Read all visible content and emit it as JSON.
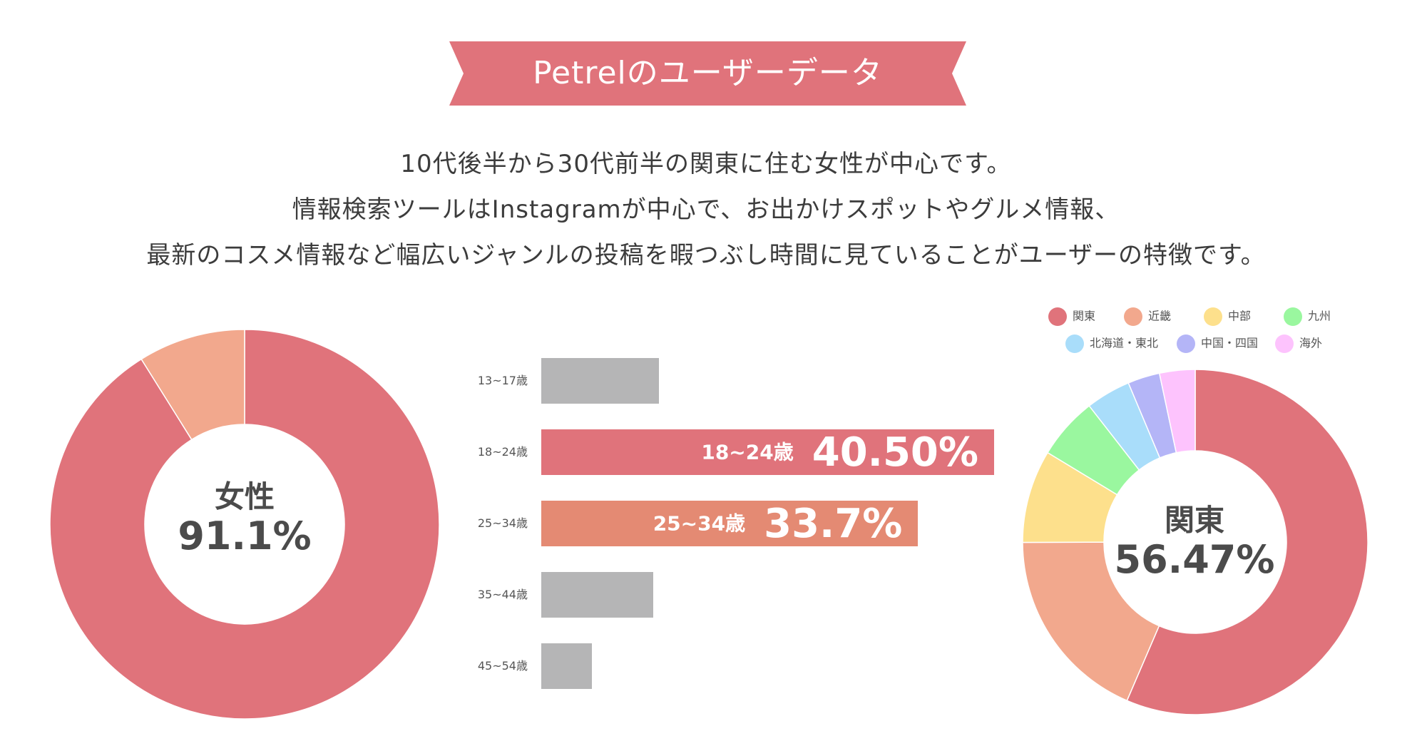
{
  "title": "Petrelのユーザーデータ",
  "description": [
    "10代後半から30代前半の関東に住む女性が中心です。",
    "情報検索ツールはInstagramが中心で、お出かけスポットやグルメ情報、",
    "最新のコスメ情報など幅広いジャンルの投稿を暇つぶし時間に見ていることがユーザーの特徴です。"
  ],
  "colors": {
    "banner": "#e0737b",
    "text": "#3c3c3c",
    "bar_gray": "#b5b5b6"
  },
  "chart_data": [
    {
      "type": "pie",
      "variant": "donut",
      "center_label": {
        "name": "女性",
        "value": "91.1%"
      },
      "slices": [
        {
          "label": "女性",
          "value": 91.1,
          "color": "#e0737b"
        },
        {
          "label": "",
          "value": 8.9,
          "color": "#f2a88d"
        }
      ]
    },
    {
      "type": "bar",
      "orientation": "horizontal",
      "categories": [
        "13~17歳",
        "18~24歳",
        "25~34歳",
        "35~44歳",
        "45~54歳"
      ],
      "values": [
        10.5,
        40.5,
        33.7,
        10.0,
        4.5
      ],
      "colors": [
        "#b5b5b6",
        "#e0737b",
        "#e48a73",
        "#b5b5b6",
        "#b5b5b6"
      ],
      "xlim": [
        0,
        40.5
      ],
      "highlighted_labels": [
        {
          "index": 1,
          "category": "18~24歳",
          "value_label": "40.50%"
        },
        {
          "index": 2,
          "category": "25~34歳",
          "value_label": "33.7%"
        }
      ]
    },
    {
      "type": "pie",
      "variant": "donut",
      "center_label": {
        "name": "関東",
        "value": "56.47%"
      },
      "slices": [
        {
          "label": "関東",
          "value": 56.47,
          "color": "#e0737b"
        },
        {
          "label": "近畿",
          "value": 18.5,
          "color": "#f2a88d"
        },
        {
          "label": "中部",
          "value": 8.7,
          "color": "#fde08c"
        },
        {
          "label": "九州",
          "value": 5.8,
          "color": "#9af79f"
        },
        {
          "label": "北海道・東北",
          "value": 4.2,
          "color": "#a9ddfa"
        },
        {
          "label": "中国・四国",
          "value": 3.0,
          "color": "#b4b5f7"
        },
        {
          "label": "海外",
          "value": 3.33,
          "color": "#fdc3fd"
        }
      ],
      "legend_placement": "top",
      "legend": [
        {
          "label": "関東",
          "color": "#e0737b"
        },
        {
          "label": "近畿",
          "color": "#f2a88d"
        },
        {
          "label": "中部",
          "color": "#fde08c"
        },
        {
          "label": "九州",
          "color": "#9af79f"
        },
        {
          "label": "北海道・東北",
          "color": "#a9ddfa"
        },
        {
          "label": "中国・四国",
          "color": "#b4b5f7"
        },
        {
          "label": "海外",
          "color": "#fdc3fd"
        }
      ]
    }
  ]
}
